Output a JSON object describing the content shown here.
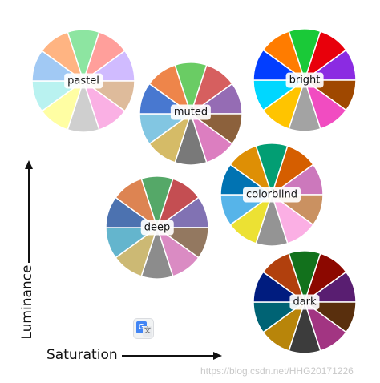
{
  "palettes": [
    {
      "key": "pastel",
      "label": "pastel",
      "colors": [
        "#8de5a1",
        "#ff9f9b",
        "#d0bbff",
        "#debb9b",
        "#fab0e4",
        "#cfcfcf",
        "#fffea3",
        "#b9f2f0",
        "#a1c9f4",
        "#ffb482"
      ]
    },
    {
      "key": "muted",
      "label": "muted",
      "colors": [
        "#6acc64",
        "#d65f5f",
        "#956cb4",
        "#8c613c",
        "#dc7ec0",
        "#797979",
        "#d5bb67",
        "#82c6e2",
        "#4878d0",
        "#ee854a"
      ]
    },
    {
      "key": "bright",
      "label": "bright",
      "colors": [
        "#1ac938",
        "#e8000b",
        "#8b2be2",
        "#9f4800",
        "#f14cc1",
        "#a3a3a3",
        "#ffc400",
        "#00d7ff",
        "#023eff",
        "#ff7c00"
      ]
    },
    {
      "key": "colorblind",
      "label": "colorblind",
      "colors": [
        "#029e73",
        "#d55e00",
        "#cc78bc",
        "#ca9161",
        "#fbafe4",
        "#949494",
        "#ece133",
        "#56b4e9",
        "#0173b2",
        "#de8f05"
      ]
    },
    {
      "key": "deep",
      "label": "deep",
      "colors": [
        "#55a868",
        "#c44e52",
        "#8172b3",
        "#937860",
        "#da8bc3",
        "#8c8c8c",
        "#ccb974",
        "#64b5cd",
        "#4c72b0",
        "#dd8452"
      ]
    },
    {
      "key": "dark",
      "label": "dark",
      "colors": [
        "#12711c",
        "#8c0800",
        "#591e71",
        "#592f0d",
        "#a23582",
        "#3c3c3c",
        "#b8850a",
        "#006374",
        "#001c7f",
        "#b1400d"
      ]
    }
  ],
  "axes": {
    "luminance": "Luminance",
    "saturation": "Saturation"
  },
  "icons": {
    "translate": "google-translate-icon"
  },
  "watermark": "https://blog.csdn.net/HHG20171226"
}
